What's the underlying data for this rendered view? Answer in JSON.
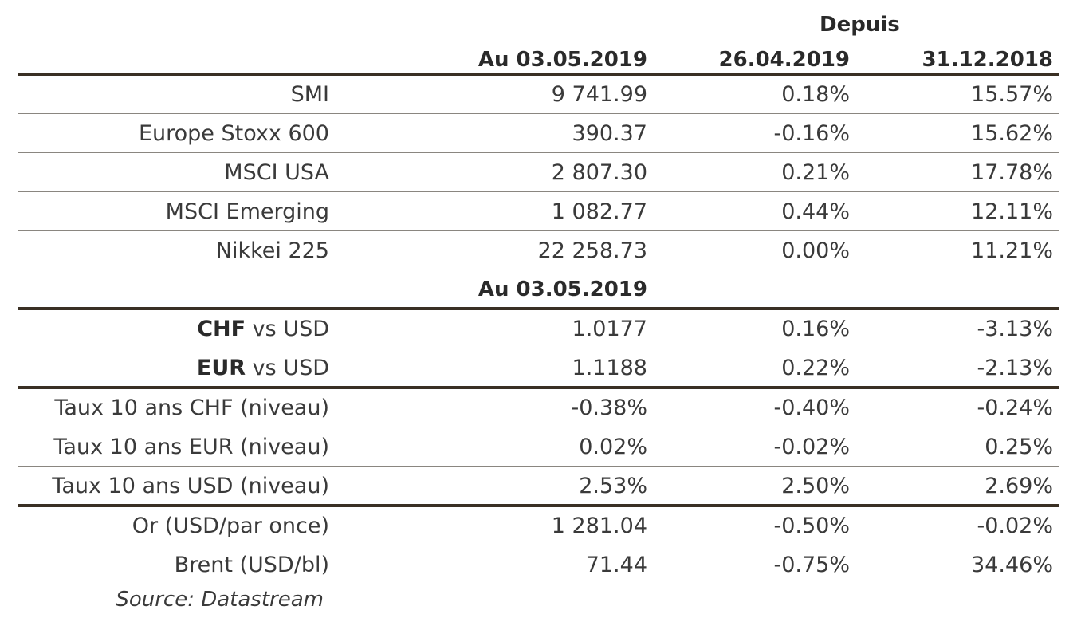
{
  "header": {
    "depuis": "Depuis",
    "col1": "Au 03.05.2019",
    "col2": "26.04.2019",
    "col3": "31.12.2018"
  },
  "equities": [
    {
      "label": "SMI",
      "v1": "9 741.99",
      "v2": "0.18%",
      "v3": "15.57%"
    },
    {
      "label": "Europe Stoxx 600",
      "v1": "390.37",
      "v2": "-0.16%",
      "v3": "15.62%"
    },
    {
      "label": "MSCI USA",
      "v1": "2 807.30",
      "v2": "0.21%",
      "v3": "17.78%"
    },
    {
      "label": "MSCI Emerging",
      "v1": "1 082.77",
      "v2": "0.44%",
      "v3": "12.11%"
    },
    {
      "label": "Nikkei 225",
      "v1": "22 258.73",
      "v2": "0.00%",
      "v3": "11.21%"
    }
  ],
  "subheader": "Au 03.05.2019",
  "fx": [
    {
      "code": "CHF",
      "suffix": " vs USD",
      "v1": "1.0177",
      "v2": "0.16%",
      "v3": "-3.13%"
    },
    {
      "code": "EUR",
      "suffix": " vs USD",
      "v1": "1.1188",
      "v2": "0.22%",
      "v3": "-2.13%"
    }
  ],
  "rates": [
    {
      "label": "Taux 10 ans CHF (niveau)",
      "v1": "-0.38%",
      "v2": "-0.40%",
      "v3": "-0.24%"
    },
    {
      "label": "Taux 10 ans EUR (niveau)",
      "v1": "0.02%",
      "v2": "-0.02%",
      "v3": "0.25%"
    },
    {
      "label": "Taux 10 ans USD (niveau)",
      "v1": "2.53%",
      "v2": "2.50%",
      "v3": "2.69%"
    }
  ],
  "commodities": [
    {
      "label": "Or (USD/par once)",
      "v1": "1 281.04",
      "v2": "-0.50%",
      "v3": "-0.02%"
    },
    {
      "label": "Brent (USD/bl)",
      "v1": "71.44",
      "v2": "-0.75%",
      "v3": "34.46%"
    }
  ],
  "source": "Source: Datastream"
}
